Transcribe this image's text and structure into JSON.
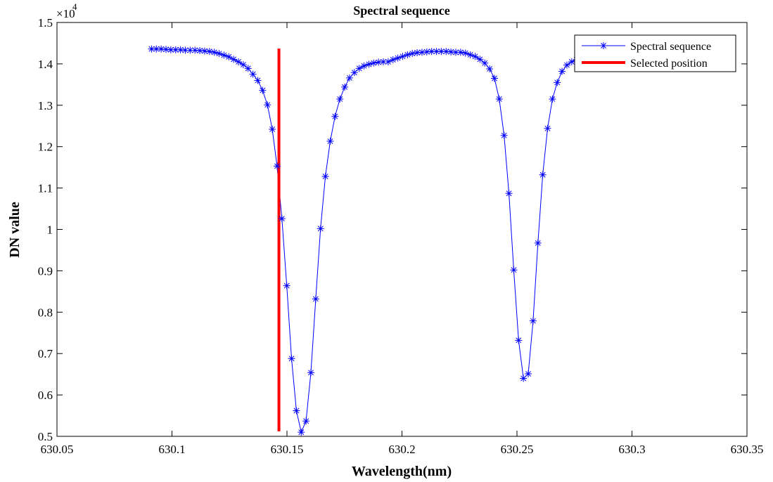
{
  "chart_data": {
    "type": "line",
    "title": "Spectral sequence",
    "xlabel": "Wavelength(nm)",
    "ylabel": "DN value",
    "y_exponent_label": "×10",
    "y_exponent_power": "4",
    "xlim": [
      630.05,
      630.35
    ],
    "ylim": [
      0.5,
      1.5
    ],
    "x_ticks": [
      630.05,
      630.1,
      630.15,
      630.2,
      630.25,
      630.3,
      630.35
    ],
    "x_tick_labels": [
      "630.05",
      "630.1",
      "630.15",
      "630.2",
      "630.25",
      "630.3",
      "630.35"
    ],
    "y_ticks": [
      0.5,
      0.6,
      0.7,
      0.8,
      0.9,
      1.0,
      1.1,
      1.2,
      1.3,
      1.4,
      1.5
    ],
    "y_tick_labels": [
      "0.5",
      "0.6",
      "0.7",
      "0.8",
      "0.9",
      "1",
      "1.1",
      "1.2",
      "1.3",
      "1.4",
      "1.5"
    ],
    "grid": false,
    "legend_position": "top-right",
    "series": [
      {
        "name": "Spectral sequence",
        "color": "#0000ff",
        "marker": "asterisk",
        "x": [
          630.0911,
          630.0932,
          630.0953,
          630.0974,
          630.0995,
          630.1016,
          630.1037,
          630.1058,
          630.1079,
          630.11,
          630.1121,
          630.1142,
          630.1163,
          630.1184,
          630.1205,
          630.1226,
          630.1247,
          630.1268,
          630.1289,
          630.131,
          630.1331,
          630.1352,
          630.1373,
          630.1394,
          630.1415,
          630.1436,
          630.1457,
          630.1478,
          630.1499,
          630.152,
          630.1541,
          630.1562,
          630.1583,
          630.1604,
          630.1625,
          630.1646,
          630.1667,
          630.1688,
          630.1709,
          630.173,
          630.1751,
          630.1772,
          630.1793,
          630.1814,
          630.1835,
          630.1856,
          630.1877,
          630.1898,
          630.1919,
          630.194,
          630.1961,
          630.1982,
          630.2003,
          630.2024,
          630.2045,
          630.2066,
          630.2087,
          630.2108,
          630.2129,
          630.215,
          630.2171,
          630.2192,
          630.2213,
          630.2234,
          630.2255,
          630.2276,
          630.2297,
          630.2318,
          630.2339,
          630.236,
          630.2381,
          630.2402,
          630.2423,
          630.2444,
          630.2465,
          630.2486,
          630.2507,
          630.2528,
          630.2549,
          630.257,
          630.2591,
          630.2612,
          630.2633,
          630.2654,
          630.2675,
          630.2696,
          630.2717,
          630.2738,
          630.2759,
          630.278
        ],
        "values": [
          1.436,
          1.436,
          1.436,
          1.435,
          1.434,
          1.434,
          1.434,
          1.433,
          1.433,
          1.433,
          1.432,
          1.431,
          1.43,
          1.428,
          1.425,
          1.421,
          1.417,
          1.411,
          1.405,
          1.398,
          1.389,
          1.375,
          1.36,
          1.336,
          1.301,
          1.242,
          1.153,
          1.026,
          0.864,
          0.688,
          0.562,
          0.51,
          0.537,
          0.654,
          0.832,
          1.002,
          1.128,
          1.213,
          1.273,
          1.315,
          1.344,
          1.366,
          1.379,
          1.389,
          1.395,
          1.399,
          1.402,
          1.404,
          1.405,
          1.405,
          1.41,
          1.414,
          1.418,
          1.422,
          1.425,
          1.427,
          1.428,
          1.429,
          1.43,
          1.43,
          1.43,
          1.43,
          1.429,
          1.428,
          1.428,
          1.426,
          1.422,
          1.418,
          1.411,
          1.402,
          1.388,
          1.365,
          1.315,
          1.227,
          1.087,
          0.902,
          0.732,
          0.64,
          0.651,
          0.779,
          0.967,
          1.132,
          1.244,
          1.315,
          1.355,
          1.382,
          1.397,
          1.405,
          1.41,
          1.413
        ]
      },
      {
        "name": "Selected position",
        "color": "#ff0000",
        "type": "vline",
        "x": [
          630.1465,
          630.1465
        ],
        "values": [
          0.512,
          1.437
        ]
      }
    ]
  }
}
